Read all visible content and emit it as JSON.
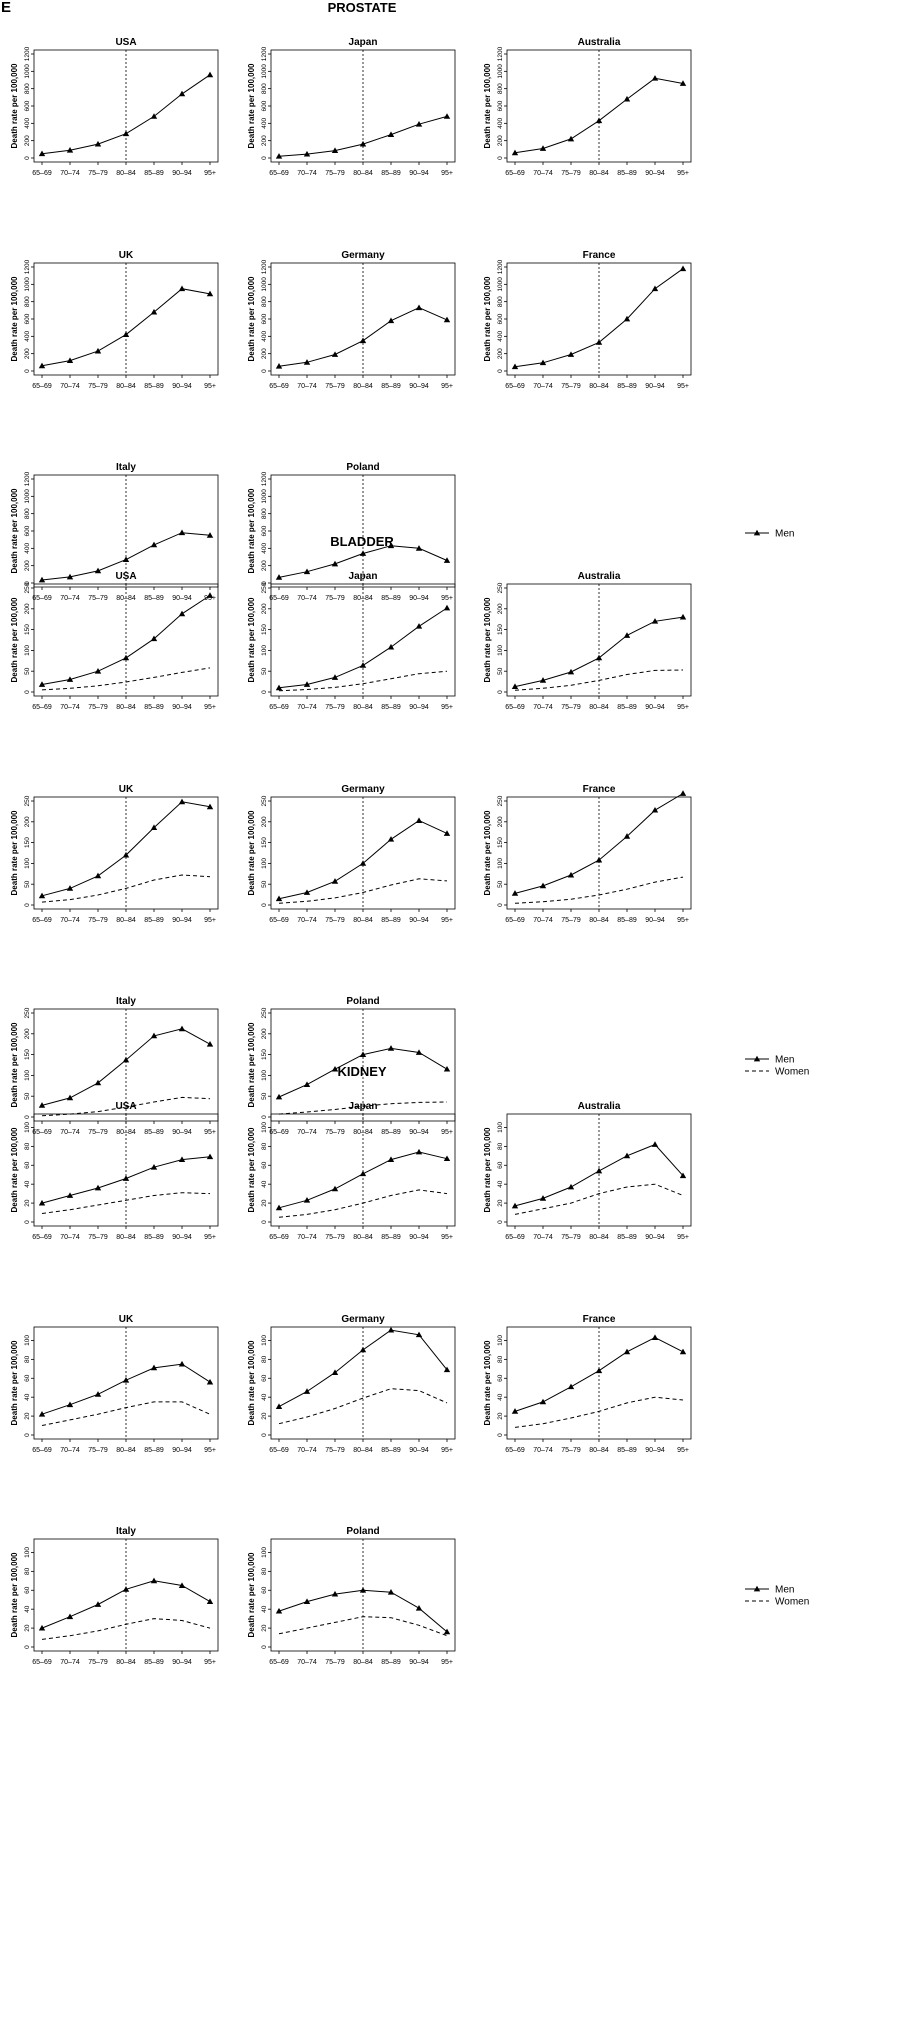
{
  "figure": {
    "panel_letter": "E"
  },
  "legend": {
    "men_label": "Men",
    "women_label": "Women"
  },
  "chart_data": [
    {
      "type": "line",
      "title": "PROSTATE",
      "ylabel": "Death rate per 100,000",
      "categories": [
        "65–69",
        "70–74",
        "75–79",
        "80–84",
        "85–89",
        "90–94",
        "95+"
      ],
      "ylim": [
        0,
        1200
      ],
      "yticks": [
        0,
        200,
        400,
        600,
        800,
        1000,
        1200
      ],
      "reference_line_category": "80–84",
      "legend_series": [
        "Men"
      ],
      "panels": [
        {
          "country": "USA",
          "series": [
            {
              "name": "Men",
              "values": [
                50,
                90,
                160,
                280,
                480,
                740,
                960
              ]
            }
          ]
        },
        {
          "country": "Japan",
          "series": [
            {
              "name": "Men",
              "values": [
                20,
                45,
                85,
                160,
                270,
                390,
                480
              ]
            }
          ]
        },
        {
          "country": "Australia",
          "series": [
            {
              "name": "Men",
              "values": [
                60,
                110,
                220,
                430,
                680,
                920,
                860
              ]
            }
          ]
        },
        {
          "country": "UK",
          "series": [
            {
              "name": "Men",
              "values": [
                60,
                120,
                230,
                420,
                680,
                950,
                890
              ]
            }
          ]
        },
        {
          "country": "Germany",
          "series": [
            {
              "name": "Men",
              "values": [
                55,
                100,
                190,
                350,
                580,
                730,
                590
              ]
            }
          ]
        },
        {
          "country": "France",
          "series": [
            {
              "name": "Men",
              "values": [
                50,
                95,
                190,
                330,
                600,
                950,
                1180
              ]
            }
          ]
        },
        {
          "country": "Italy",
          "series": [
            {
              "name": "Men",
              "values": [
                35,
                70,
                140,
                270,
                440,
                580,
                550
              ]
            }
          ]
        },
        {
          "country": "Poland",
          "series": [
            {
              "name": "Men",
              "values": [
                65,
                130,
                220,
                340,
                430,
                400,
                260
              ]
            }
          ]
        }
      ]
    },
    {
      "type": "line",
      "title": "BLADDER",
      "ylabel": "Death rate per 100,000",
      "categories": [
        "65–69",
        "70–74",
        "75–79",
        "80–84",
        "85–89",
        "90–94",
        "95+"
      ],
      "ylim": [
        0,
        250
      ],
      "yticks": [
        0,
        50,
        100,
        150,
        200,
        250
      ],
      "reference_line_category": "80–84",
      "legend_series": [
        "Men",
        "Women"
      ],
      "panels": [
        {
          "country": "USA",
          "series": [
            {
              "name": "Men",
              "values": [
                18,
                30,
                50,
                82,
                128,
                188,
                232
              ]
            },
            {
              "name": "Women",
              "values": [
                5,
                9,
                15,
                24,
                35,
                47,
                58
              ]
            }
          ]
        },
        {
          "country": "Japan",
          "series": [
            {
              "name": "Men",
              "values": [
                10,
                18,
                35,
                64,
                108,
                158,
                202
              ]
            },
            {
              "name": "Women",
              "values": [
                3,
                6,
                11,
                20,
                32,
                44,
                50
              ]
            }
          ]
        },
        {
          "country": "Australia",
          "series": [
            {
              "name": "Men",
              "values": [
                13,
                28,
                48,
                82,
                136,
                170,
                180
              ]
            },
            {
              "name": "Women",
              "values": [
                4,
                9,
                16,
                28,
                42,
                52,
                53
              ]
            }
          ]
        },
        {
          "country": "UK",
          "series": [
            {
              "name": "Men",
              "values": [
                22,
                40,
                70,
                120,
                186,
                248,
                236
              ]
            },
            {
              "name": "Women",
              "values": [
                7,
                13,
                24,
                40,
                60,
                72,
                68
              ]
            }
          ]
        },
        {
          "country": "Germany",
          "series": [
            {
              "name": "Men",
              "values": [
                15,
                30,
                57,
                100,
                158,
                203,
                172
              ]
            },
            {
              "name": "Women",
              "values": [
                4,
                9,
                17,
                30,
                48,
                63,
                58
              ]
            }
          ]
        },
        {
          "country": "France",
          "series": [
            {
              "name": "Men",
              "values": [
                28,
                46,
                72,
                108,
                165,
                228,
                268
              ]
            },
            {
              "name": "Women",
              "values": [
                4,
                8,
                14,
                24,
                38,
                55,
                67
              ]
            }
          ]
        },
        {
          "country": "Italy",
          "series": [
            {
              "name": "Men",
              "values": [
                28,
                46,
                82,
                137,
                195,
                212,
                175
              ]
            },
            {
              "name": "Women",
              "values": [
                3,
                7,
                13,
                24,
                36,
                47,
                44
              ]
            }
          ]
        },
        {
          "country": "Poland",
          "series": [
            {
              "name": "Men",
              "values": [
                48,
                78,
                115,
                150,
                165,
                155,
                115
              ]
            },
            {
              "name": "Women",
              "values": [
                7,
                12,
                18,
                26,
                32,
                35,
                36
              ]
            }
          ]
        }
      ]
    },
    {
      "type": "line",
      "title": "KIDNEY",
      "ylabel": "Death rate per 100,000",
      "categories": [
        "65–69",
        "70–74",
        "75–79",
        "80–84",
        "85–89",
        "90–94",
        "95+"
      ],
      "ylim": [
        0,
        110
      ],
      "yticks": [
        0,
        20,
        40,
        60,
        80,
        100
      ],
      "reference_line_category": "80–84",
      "legend_series": [
        "Men",
        "Women"
      ],
      "panels": [
        {
          "country": "USA",
          "series": [
            {
              "name": "Men",
              "values": [
                20,
                28,
                36,
                46,
                58,
                66,
                69
              ]
            },
            {
              "name": "Women",
              "values": [
                9,
                13,
                18,
                23,
                28,
                31,
                30
              ]
            }
          ]
        },
        {
          "country": "Japan",
          "series": [
            {
              "name": "Men",
              "values": [
                15,
                23,
                35,
                51,
                66,
                74,
                67
              ]
            },
            {
              "name": "Women",
              "values": [
                5,
                8,
                13,
                20,
                28,
                34,
                30
              ]
            }
          ]
        },
        {
          "country": "Australia",
          "series": [
            {
              "name": "Men",
              "values": [
                17,
                25,
                37,
                54,
                70,
                82,
                49
              ]
            },
            {
              "name": "Women",
              "values": [
                8,
                14,
                20,
                30,
                37,
                40,
                28
              ]
            }
          ]
        },
        {
          "country": "UK",
          "series": [
            {
              "name": "Men",
              "values": [
                22,
                32,
                43,
                58,
                71,
                75,
                56
              ]
            },
            {
              "name": "Women",
              "values": [
                10,
                16,
                22,
                29,
                35,
                35,
                22
              ]
            }
          ]
        },
        {
          "country": "Germany",
          "series": [
            {
              "name": "Men",
              "values": [
                30,
                46,
                66,
                90,
                111,
                106,
                69
              ]
            },
            {
              "name": "Women",
              "values": [
                12,
                19,
                28,
                39,
                49,
                47,
                34
              ]
            }
          ]
        },
        {
          "country": "France",
          "series": [
            {
              "name": "Men",
              "values": [
                25,
                35,
                51,
                68,
                88,
                103,
                88
              ]
            },
            {
              "name": "Women",
              "values": [
                8,
                12,
                18,
                25,
                34,
                40,
                37
              ]
            }
          ]
        },
        {
          "country": "Italy",
          "series": [
            {
              "name": "Men",
              "values": [
                20,
                32,
                45,
                61,
                70,
                65,
                48
              ]
            },
            {
              "name": "Women",
              "values": [
                8,
                12,
                17,
                24,
                30,
                28,
                20
              ]
            }
          ]
        },
        {
          "country": "Poland",
          "series": [
            {
              "name": "Men",
              "values": [
                38,
                48,
                56,
                60,
                58,
                41,
                16
              ]
            },
            {
              "name": "Women",
              "values": [
                14,
                20,
                26,
                32,
                31,
                23,
                12
              ]
            }
          ]
        }
      ]
    }
  ]
}
